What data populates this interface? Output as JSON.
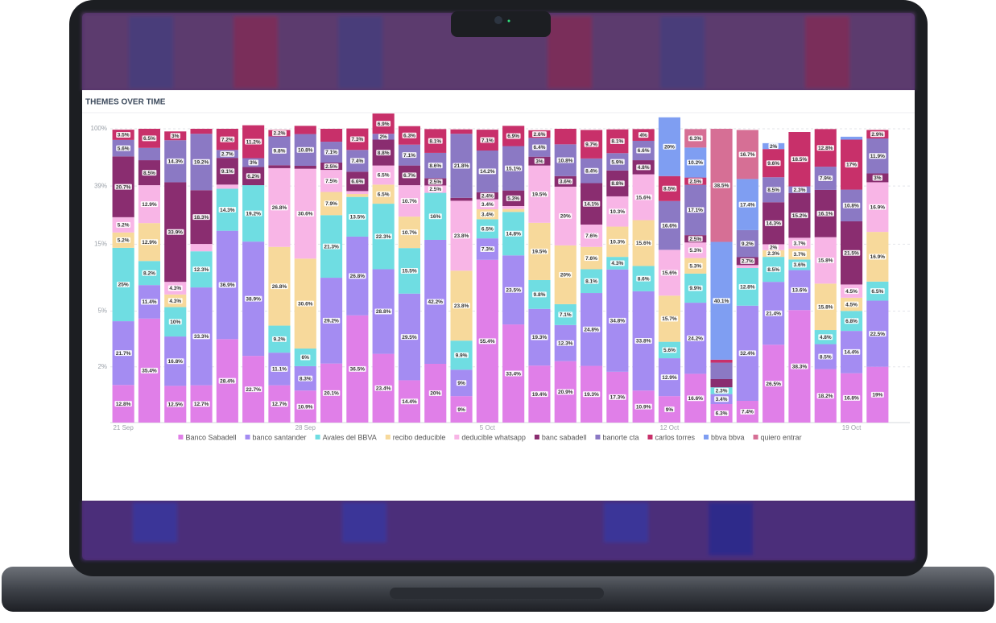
{
  "chart_data": {
    "type": "stacked_bar",
    "title": "THEMES OVER TIME",
    "categories": [
      "21 Sep",
      null,
      null,
      null,
      null,
      null,
      null,
      "28 Sep",
      null,
      null,
      null,
      null,
      null,
      null,
      "5 Oct",
      null,
      null,
      null,
      null,
      null,
      null,
      "12 Oct",
      null,
      null,
      null,
      null,
      null,
      null,
      "19 Oct",
      null
    ],
    "ylim": [
      0.8,
      100
    ],
    "yscale": "log",
    "grid": true,
    "yticks": [
      {
        "value": 100,
        "label": "100%"
      },
      {
        "value": 39,
        "label": "39%"
      },
      {
        "value": 15,
        "label": "15%"
      },
      {
        "value": 5,
        "label": "5%"
      },
      {
        "value": 2,
        "label": "2%"
      }
    ],
    "legend": "bottom",
    "series": [
      {
        "name": "Banco Sabadell",
        "color": "#e07fe8",
        "values": [
          12.8,
          35.4,
          12.5,
          12.7,
          28.4,
          22.7,
          12.7,
          10.9,
          20.1,
          36.5,
          23.4,
          14.4,
          20,
          9,
          55.4,
          33.4,
          19.4,
          20.9,
          19.3,
          17.3,
          10.9,
          9,
          16.6,
          6.3,
          7.4,
          26.5,
          38.3,
          18.2,
          16.8,
          19
        ],
        "value_labels": [
          "12.8%",
          "35.4%",
          "12.5%",
          "12.7%",
          "28.4%",
          "22.7%",
          "12.7%",
          "10.9%",
          "20.1%",
          "36.5%",
          "23.4%",
          "14.4%",
          "20%",
          "9%",
          "55.4%",
          "33.4%",
          "19.4%",
          "20.9%",
          "19.3%",
          "17.3%",
          "10.9%",
          "9%",
          "16.6%",
          "6.3%",
          "7.4%",
          "26.5%",
          "38.3%",
          "18.2%",
          "16.8%",
          "19%"
        ]
      },
      {
        "name": "banco santander",
        "color": "#a48cf2",
        "values": [
          21.7,
          11.4,
          16.8,
          33.3,
          36.9,
          38.9,
          11.1,
          8.3,
          29.2,
          26.8,
          28.8,
          29.5,
          42.2,
          9,
          7.3,
          23.5,
          19.3,
          12.3,
          24.8,
          34.8,
          33.8,
          12.9,
          24.2,
          3.4,
          32.4,
          21.4,
          13.6,
          8.5,
          14.4,
          22.5
        ],
        "value_labels": [
          "21.7%",
          "11.4%",
          "16.8%",
          "33.3%",
          "36.9%",
          "38.9%",
          "11.1%",
          "8.3%",
          "29.2%",
          "26.8%",
          "28.8%",
          "29.5%",
          "42.2%",
          "9%",
          "7.3%",
          "23.5%",
          "19.3%",
          "12.3%",
          "24.8%",
          "34.8%",
          "33.8%",
          "12.9%",
          "24.2%",
          "3.4%",
          "32.4%",
          "21.4%",
          "13.6%",
          "8.5%",
          "14.4%",
          "22.5%"
        ]
      },
      {
        "name": "Avales del BBVA",
        "color": "#6fdde2",
        "values": [
          25,
          8.2,
          10,
          12.3,
          14.3,
          19.2,
          9.2,
          6,
          21.3,
          13.5,
          22.3,
          15.5,
          16,
          9.9,
          6.5,
          14.8,
          9.8,
          7.1,
          8.1,
          4.3,
          8.6,
          5.6,
          9.9,
          2.3,
          12.8,
          8.5,
          3.6,
          4.8,
          6.8,
          6.5
        ],
        "value_labels": [
          "25%",
          "8.2%",
          "10%",
          "12.3%",
          "14.3%",
          "19.2%",
          "9.2%",
          "6%",
          "21.3%",
          "13.5%",
          "22.3%",
          "15.5%",
          "16%",
          "9.9%",
          "6.5%",
          "14.8%",
          "9.8%",
          "7.1%",
          "8.1%",
          "4.3%",
          "8.6%",
          "5.6%",
          "9.9%",
          "2.3%",
          "12.8%",
          "8.5%",
          "3.6%",
          "4.8%",
          "6.8%",
          "6.5%"
        ]
      },
      {
        "name": "recibo deducible",
        "color": "#f7d99b",
        "values": [
          5.2,
          12.9,
          4.3,
          0,
          0,
          0,
          26.8,
          30.6,
          7.9,
          1,
          6.5,
          10.7,
          0,
          23.8,
          3.4,
          1,
          19.5,
          20,
          7.6,
          10.3,
          15.6,
          15.7,
          5.3,
          0,
          0,
          2.3,
          3.7,
          15.8,
          4.5,
          16.9
        ],
        "value_labels": [
          "5.2%",
          "12.9%",
          "4.3%",
          null,
          null,
          null,
          "26.8%",
          "30.6%",
          "7.9%",
          null,
          "6.5%",
          "10.7%",
          null,
          "23.8%",
          "3.4%",
          null,
          "19.5%",
          "20%",
          "7.6%",
          "10.3%",
          "15.6%",
          "15.7%",
          "5.3%",
          null,
          null,
          "2.3%",
          "3.7%",
          "15.8%",
          "4.5%",
          "16.9%"
        ]
      },
      {
        "name": "deducible whatsapp",
        "color": "#f8b5e6",
        "values": [
          5.2,
          12.9,
          4.3,
          2.5,
          1.4,
          0,
          26.8,
          30.6,
          7.5,
          1,
          6.5,
          10.7,
          2.5,
          23.8,
          3.4,
          1,
          19.5,
          20,
          7.6,
          10.3,
          15.6,
          15.6,
          5.3,
          0,
          1,
          2,
          3.7,
          15.8,
          4.5,
          16.9
        ],
        "value_labels": [
          "5.2%",
          "12.9%",
          "4.3%",
          null,
          null,
          null,
          "26.8%",
          "30.6%",
          "7.5%",
          null,
          "6.5%",
          "10.7%",
          "2.5%",
          "23.8%",
          "3.4%",
          null,
          "19.5%",
          "20%",
          "7.6%",
          "10.3%",
          "15.6%",
          "15.6%",
          "5.3%",
          null,
          null,
          "2%",
          "3.7%",
          "15.8%",
          "4.5%",
          "16.9%"
        ]
      },
      {
        "name": "banc sabadell",
        "color": "#8a2d70",
        "values": [
          20.7,
          8.5,
          33.9,
          18.3,
          9.1,
          6.2,
          1,
          1,
          2.5,
          6.6,
          8.8,
          6.7,
          2.5,
          1,
          2.4,
          5.3,
          3,
          3.6,
          14.1,
          8.8,
          4.8,
          0,
          2.5,
          2.8,
          2.7,
          14.3,
          15.2,
          16.1,
          21.5,
          3
        ],
        "value_labels": [
          "20.7%",
          "8.5%",
          "33.9%",
          "18.3%",
          "9.1%",
          "6.2%",
          null,
          null,
          "2.5%",
          "6.6%",
          "8.8%",
          "6.7%",
          "2.5%",
          null,
          "2.4%",
          "5.3%",
          "3%",
          "3.6%",
          "14.1%",
          "8.8%",
          "4.8%",
          null,
          "2.5%",
          null,
          "2.7%",
          "14.3%",
          "15.2%",
          "16.1%",
          "21.5%",
          "3%"
        ]
      },
      {
        "name": "banorte cta",
        "color": "#8b79c4",
        "values": [
          5.6,
          4.2,
          14.3,
          19.2,
          2.7,
          3,
          9.8,
          10.8,
          7.1,
          7.4,
          2,
          7.1,
          8.6,
          21.8,
          14.2,
          15.1,
          6.4,
          10.8,
          8.4,
          5.9,
          6.6,
          16.6,
          17.1,
          5.6,
          9.2,
          8.5,
          2.3,
          7.9,
          10.8,
          11.9
        ],
        "value_labels": [
          "5.6%",
          null,
          "14.3%",
          "19.2%",
          "2.7%",
          "3%",
          "9.8%",
          "10.8%",
          "7.1%",
          "7.4%",
          "2%",
          "7.1%",
          "8.6%",
          "21.8%",
          "14.2%",
          "15.1%",
          "6.4%",
          "10.8%",
          "8.4%",
          "5.9%",
          "6.6%",
          "16.6%",
          "17.1%",
          null,
          "9.2%",
          "8.5%",
          "2.3%",
          "7.9%",
          "10.8%",
          "11.9%"
        ]
      },
      {
        "name": "carlos torres",
        "color": "#c8306a",
        "values": [
          3.5,
          6.5,
          3,
          1.7,
          7.2,
          11.2,
          2.2,
          2.8,
          4.4,
          7.3,
          6.9,
          6.3,
          8.1,
          1.5,
          7.1,
          6.9,
          2.6,
          5.3,
          9.7,
          8.1,
          4,
          8.5,
          2.5,
          1,
          0,
          9.6,
          18.5,
          12.8,
          17,
          2.9
        ],
        "value_labels": [
          "3.5%",
          "6.5%",
          "3%",
          "1.7%",
          "7.2%",
          "11.2%",
          "2.2%",
          null,
          null,
          "7.3%",
          "6.9%",
          "6.3%",
          "8.1%",
          null,
          "7.1%",
          "6.9%",
          "2.6%",
          null,
          "9.7%",
          "8.1%",
          "4%",
          "8.5%",
          "2.5%",
          null,
          null,
          "9.6%",
          "18.5%",
          "12.8%",
          "17%",
          "2.9%"
        ]
      },
      {
        "name": "bbva bbva",
        "color": "#7f9ef2",
        "values": [
          0,
          0,
          0,
          0,
          0,
          0,
          0,
          0,
          0,
          0,
          0,
          0,
          0,
          0,
          0,
          0,
          0,
          0,
          0,
          0,
          0,
          20,
          10.2,
          40.1,
          17.4,
          2,
          0,
          0,
          1,
          0
        ],
        "value_labels": [
          null,
          null,
          null,
          null,
          null,
          null,
          null,
          null,
          null,
          null,
          null,
          null,
          null,
          null,
          null,
          null,
          null,
          null,
          null,
          null,
          null,
          "20%",
          "10.2%",
          "40.1%",
          "17.4%",
          "2%",
          null,
          null,
          null,
          null
        ]
      },
      {
        "name": "quiero entrar",
        "color": "#d66f95",
        "values": [
          0,
          0,
          0,
          0,
          0,
          0,
          0,
          0,
          0,
          0,
          0,
          0,
          0,
          0,
          0,
          0,
          0,
          0,
          0,
          0,
          0,
          0,
          6.3,
          38.5,
          16.7,
          0,
          0,
          0,
          0,
          0
        ],
        "value_labels": [
          null,
          null,
          null,
          null,
          null,
          null,
          null,
          null,
          null,
          null,
          null,
          null,
          null,
          null,
          null,
          null,
          null,
          null,
          null,
          null,
          null,
          null,
          "6.3%",
          "38.5%",
          "16.7%",
          null,
          null,
          null,
          null,
          null
        ]
      }
    ]
  }
}
